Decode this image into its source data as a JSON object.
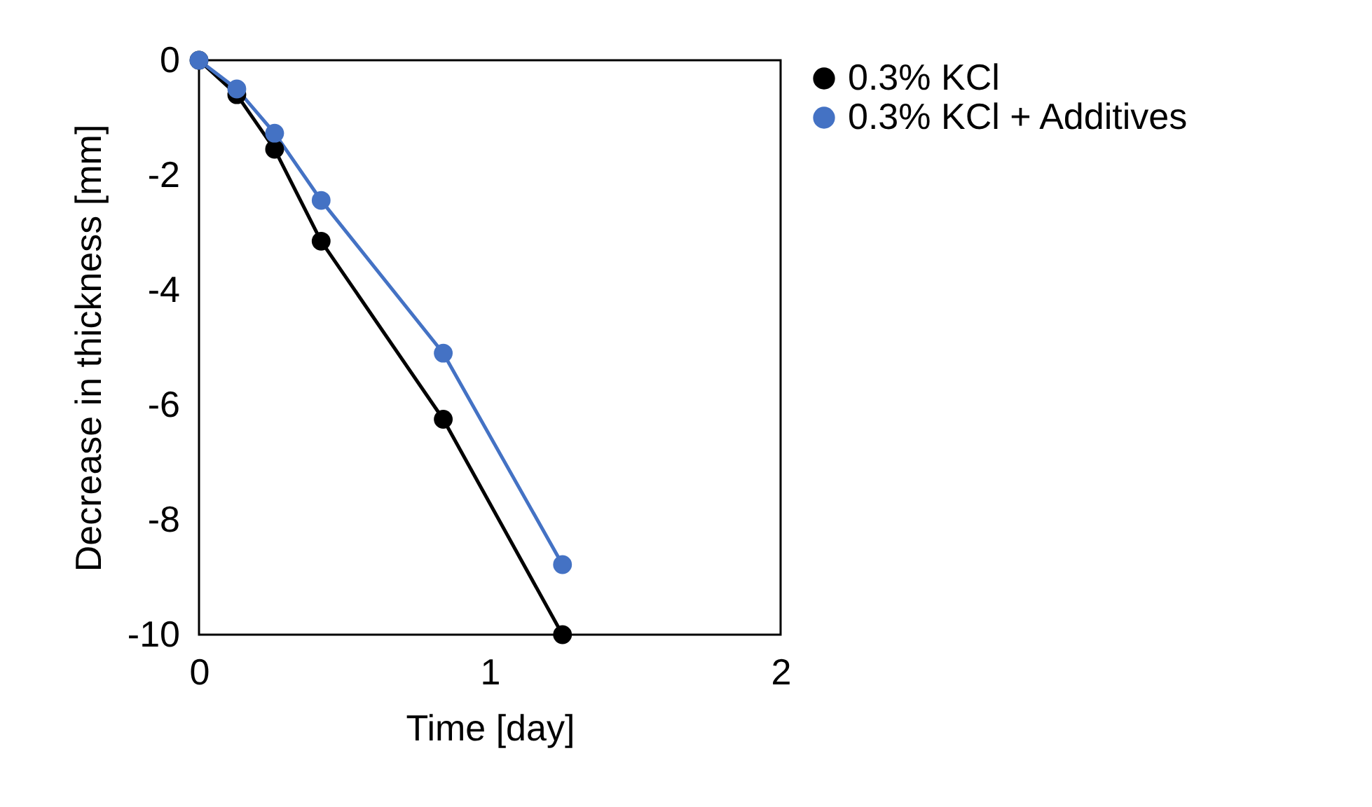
{
  "chart_data": {
    "type": "line",
    "xlabel": "Time [day]",
    "ylabel": "Decrease in thickness [mm]",
    "x": [
      0,
      0.13,
      0.26,
      0.42,
      0.84,
      1.25
    ],
    "series": [
      {
        "name": "0.3% KCl",
        "color": "#000000",
        "values": [
          0,
          -0.6,
          -1.55,
          -3.15,
          -6.25,
          -10
        ]
      },
      {
        "name": "0.3% KCl + Additives",
        "color": "#4472c4",
        "values": [
          0,
          -0.5,
          -1.27,
          -2.44,
          -5.1,
          -8.78
        ]
      }
    ],
    "xlim": [
      0,
      2
    ],
    "xticks": [
      0,
      1,
      2
    ],
    "ylim": [
      -10,
      0
    ],
    "yticks": [
      -10,
      -8,
      -6,
      -4,
      -2,
      0
    ],
    "grid": false,
    "legend": "right",
    "marker": "circle",
    "line_style": "solid"
  }
}
